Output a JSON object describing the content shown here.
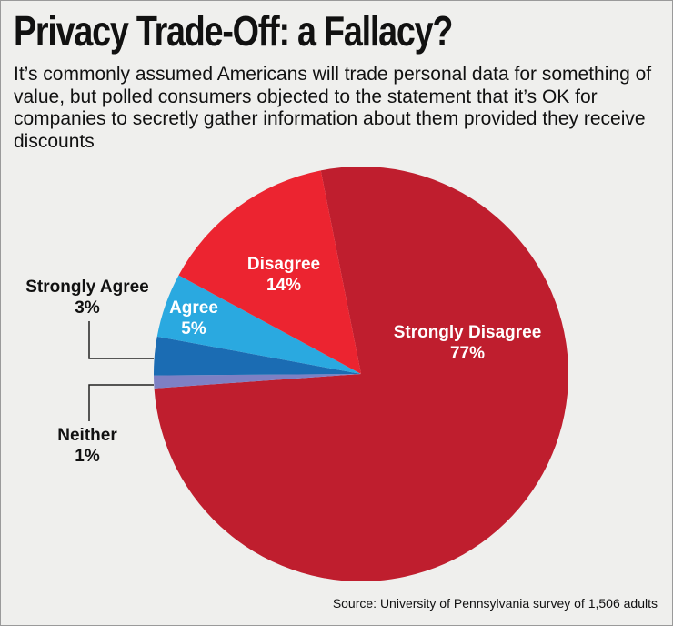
{
  "chart_data": {
    "type": "pie",
    "title": "Privacy Trade-Off: a Fallacy?",
    "subtitle": "It’s commonly assumed Americans will trade personal data for something of value, but polled consumers objected to the statement that it’s OK for companies to secretly gather information about them provided they receive discounts",
    "categories": [
      "Strongly Disagree",
      "Neither",
      "Strongly Agree",
      "Agree",
      "Disagree"
    ],
    "values": [
      77,
      1,
      3,
      5,
      14
    ],
    "value_labels": [
      "77%",
      "1%",
      "3%",
      "5%",
      "14%"
    ],
    "colors": [
      "#bf1e2e",
      "#7d80c4",
      "#1b6cb3",
      "#2aa9e0",
      "#ec2430"
    ],
    "source": "Source: University of Pennsylvania survey of 1,506 adults"
  }
}
